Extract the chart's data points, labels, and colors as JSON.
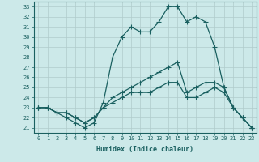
{
  "xlabel": "Humidex (Indice chaleur)",
  "xlim": [
    -0.5,
    23.5
  ],
  "ylim": [
    20.5,
    33.5
  ],
  "yticks": [
    21,
    22,
    23,
    24,
    25,
    26,
    27,
    28,
    29,
    30,
    31,
    32,
    33
  ],
  "xticks": [
    0,
    1,
    2,
    3,
    4,
    5,
    6,
    7,
    8,
    9,
    10,
    11,
    12,
    13,
    14,
    15,
    16,
    17,
    18,
    19,
    20,
    21,
    22,
    23
  ],
  "bg_color": "#cce9e9",
  "grid_color": "#b0cccc",
  "line_color": "#1a6060",
  "lines": [
    {
      "x": [
        0,
        1,
        2,
        3,
        4,
        5,
        6,
        7,
        8,
        9,
        10,
        11,
        12,
        13,
        14,
        15,
        16,
        17,
        18,
        19,
        20,
        21,
        22,
        23
      ],
      "y": [
        23,
        23,
        22.5,
        22,
        21.5,
        21,
        21.5,
        23.5,
        28,
        30,
        31,
        30.5,
        30.5,
        31.5,
        33,
        33,
        31.5,
        32,
        31.5,
        29,
        25,
        23,
        22,
        21
      ]
    },
    {
      "x": [
        0,
        1,
        2,
        3,
        4,
        5,
        6,
        7,
        8,
        9,
        10,
        11,
        12,
        13,
        14,
        15,
        16,
        17,
        18,
        19,
        20,
        21,
        22,
        23
      ],
      "y": [
        23,
        23,
        22.5,
        22.5,
        22,
        21.5,
        22,
        23,
        24,
        24.5,
        25,
        25.5,
        26,
        26.5,
        27,
        27.5,
        24.5,
        25,
        25.5,
        25.5,
        25,
        23,
        22,
        21
      ]
    },
    {
      "x": [
        0,
        1,
        2,
        3,
        4,
        5,
        6,
        7,
        8,
        9,
        10,
        11,
        12,
        13,
        14,
        15,
        16,
        17,
        18,
        19,
        20,
        21,
        22,
        23
      ],
      "y": [
        23,
        23,
        22.5,
        22.5,
        22,
        21.5,
        22,
        23,
        23.5,
        24,
        24.5,
        24.5,
        24.5,
        25,
        25.5,
        25.5,
        24,
        24,
        24.5,
        25,
        24.5,
        23,
        22,
        21
      ]
    }
  ],
  "marker": "+",
  "markersize": 4,
  "linewidth": 0.9,
  "tick_fontsize": 5,
  "xlabel_fontsize": 6
}
